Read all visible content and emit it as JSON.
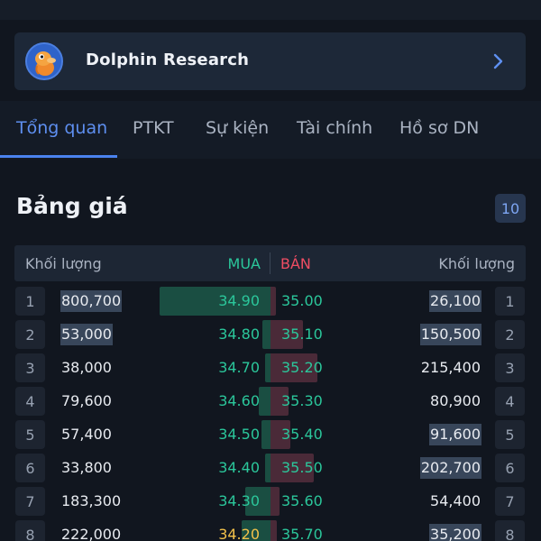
{
  "banner": {
    "title": "Dolphin Research",
    "avatar_icon": "dolphin-mascot-icon"
  },
  "tabs": [
    {
      "label": "Tổng quan",
      "active": true
    },
    {
      "label": "PTKT",
      "active": false
    },
    {
      "label": "Sự kiện",
      "active": false
    },
    {
      "label": "Tài chính",
      "active": false
    },
    {
      "label": "Hồ sơ DN",
      "active": false
    }
  ],
  "order_book": {
    "title": "Bảng giá",
    "depth": "10",
    "headers": {
      "buy_volume": "Khối lượng",
      "buy": "MUA",
      "sell": "BÁN",
      "sell_volume": "Khối lượng"
    },
    "rows": [
      {
        "index": "1",
        "buy_volume": "800,700",
        "buy_price": "34.90",
        "sell_price": "35.00",
        "sell_volume": "26,100"
      },
      {
        "index": "2",
        "buy_volume": "53,000",
        "buy_price": "34.80",
        "sell_price": "35.10",
        "sell_volume": "150,500"
      },
      {
        "index": "3",
        "buy_volume": "38,000",
        "buy_price": "34.70",
        "sell_price": "35.20",
        "sell_volume": "215,400"
      },
      {
        "index": "4",
        "buy_volume": "79,600",
        "buy_price": "34.60",
        "sell_price": "35.30",
        "sell_volume": "80,900"
      },
      {
        "index": "5",
        "buy_volume": "57,400",
        "buy_price": "34.50",
        "sell_price": "35.40",
        "sell_volume": "91,600"
      },
      {
        "index": "6",
        "buy_volume": "33,800",
        "buy_price": "34.40",
        "sell_price": "35.50",
        "sell_volume": "202,700"
      },
      {
        "index": "7",
        "buy_volume": "183,300",
        "buy_price": "34.30",
        "sell_price": "35.60",
        "sell_volume": "54,400"
      },
      {
        "index": "8",
        "buy_volume": "222,000",
        "buy_price": "34.20",
        "sell_price": "35.70",
        "sell_volume": "35,200"
      }
    ]
  },
  "colors": {
    "buy": "#2bc79b",
    "sell": "#ef4d63",
    "accent": "#5e8ff0",
    "reference": "#f2c14a"
  }
}
